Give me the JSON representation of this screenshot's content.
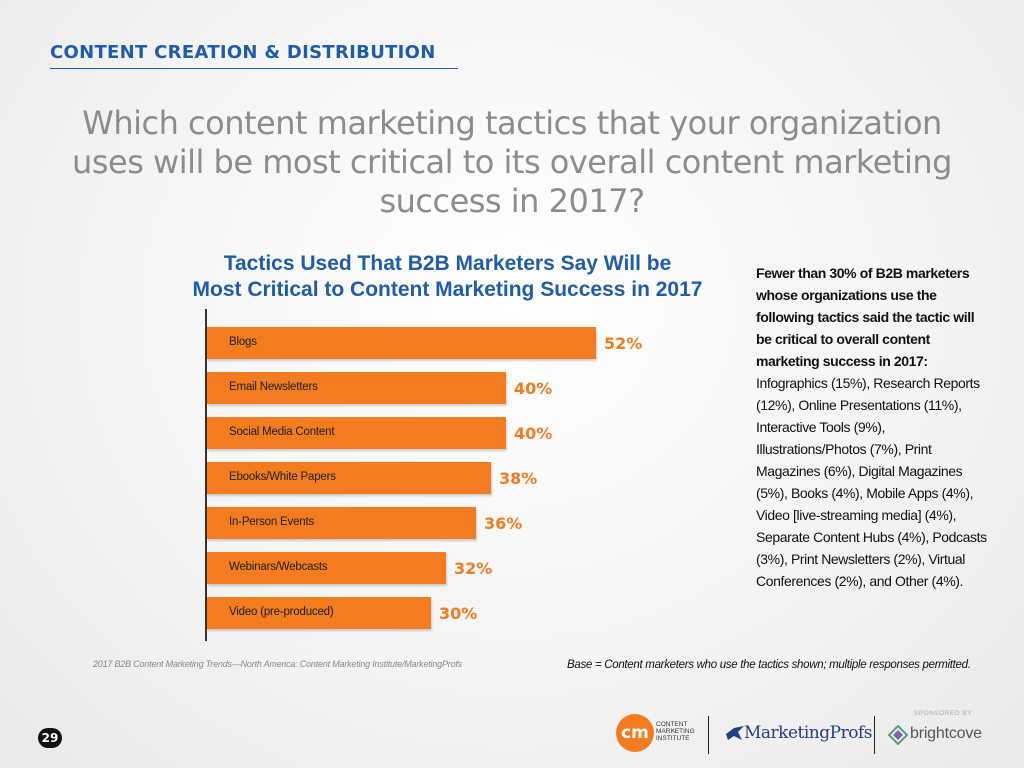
{
  "header": {
    "section": "CONTENT CREATION & DISTRIBUTION"
  },
  "question": "Which content marketing tactics that your organization uses will be most critical to its overall content marketing success in 2017?",
  "chart_data": {
    "type": "bar",
    "orientation": "horizontal",
    "title_lines": [
      "Tactics Used That B2B Marketers Say Will be",
      "Most Critical to Content Marketing Success in 2017"
    ],
    "categories": [
      "Blogs",
      "Email Newsletters",
      "Social Media Content",
      "Ebooks/White Papers",
      "In-Person Events",
      "Webinars/Webcasts",
      "Video (pre-produced)"
    ],
    "values": [
      52,
      40,
      40,
      38,
      36,
      32,
      30
    ],
    "value_labels": [
      "52%",
      "40%",
      "40%",
      "38%",
      "36%",
      "32%",
      "30%"
    ],
    "unit": "%",
    "xlim": [
      0,
      100
    ],
    "bar_color": "#f37b20",
    "grid": false,
    "legend": "none"
  },
  "side_note": {
    "bold": "Fewer than 30% of B2B marketers whose organizations use the following tactics said the tactic will be critical to overall content marketing success in 2017:",
    "body": " Infographics (15%), Research Reports (12%), Online Presentations (11%), Interactive Tools (9%), Illustrations/Photos (7%), Print Magazines (6%), Digital Magazines (5%), Books (4%), Mobile Apps (4%), Video [live-streaming media] (4%), Separate Content Hubs (4%), Podcasts (3%), Print Newsletters (2%), Virtual Conferences (2%), and Other (4%)."
  },
  "footer": {
    "source": "2017 B2B Content Marketing Trends—North America: Content Marketing Institute/MarketingProfs",
    "base": "Base = Content marketers who use the tactics shown; multiple responses permitted.",
    "page_number": "29",
    "cmi_mark": "cm",
    "cmi_lines": [
      "CONTENT",
      "MARKETING",
      "INSTITUTE"
    ],
    "marketingprofs": "MarketingProfs",
    "sponsored_by": "SPONSORED BY",
    "brightcove": "brightcove"
  },
  "colors": {
    "accent_blue": "#1f5da8",
    "accent_orange": "#f37b20",
    "title_gray": "#8c8c8c"
  }
}
